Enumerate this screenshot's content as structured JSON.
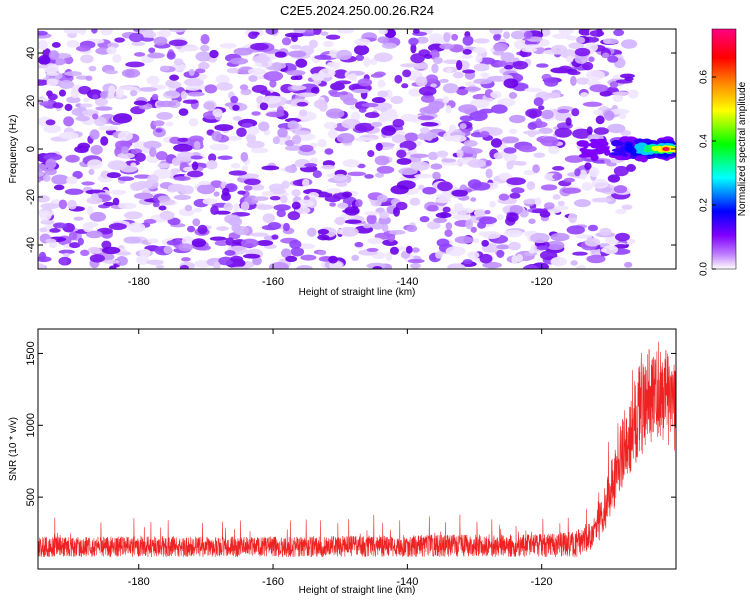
{
  "figure_title": "C2E5.2024.250.00.26.R24",
  "chart_data": [
    {
      "type": "heatmap",
      "title": "",
      "xlabel": "Height of straight line (km)",
      "ylabel": "Frequency (Hz)",
      "xlim": [
        -195,
        -100
      ],
      "ylim": [
        -50,
        50
      ],
      "xticks": [
        -180,
        -160,
        -140,
        -120
      ],
      "yticks": [
        -40,
        -20,
        0,
        20,
        40
      ],
      "grid": false,
      "data_extent_x": [
        -195,
        -107
      ],
      "background_noise": {
        "level_range": [
          0.0,
          0.2
        ],
        "appearance": "scattered speckle across the band"
      },
      "signal_feature": {
        "x_range": [
          -114,
          -100
        ],
        "frequency_center_hz": 0,
        "frequency_halfwidth_hz": 4,
        "peak_level": 0.75,
        "peak_x": -101.5
      },
      "colorbar": {
        "label": "Normalized spectral amplitude",
        "range": [
          0.0,
          0.75
        ],
        "ticks": [
          0.0,
          0.2,
          0.4,
          0.6
        ],
        "colormap": [
          "#ffffff",
          "#8000ff",
          "#0000ff",
          "#00ffff",
          "#00ff00",
          "#ffff00",
          "#ff8000",
          "#ff0000",
          "#ff0080"
        ],
        "position": "right"
      }
    },
    {
      "type": "line",
      "title": "",
      "xlabel": "Height of straight line (km)",
      "ylabel": "SNR (10 * v/v)",
      "xlim": [
        -195,
        -100
      ],
      "ylim": [
        0,
        1670
      ],
      "xticks": [
        -180,
        -160,
        -140,
        -120
      ],
      "yticks": [
        500,
        1000,
        1500
      ],
      "grid": false,
      "series": [
        {
          "color": "#ee2222",
          "profile": {
            "x": [
              -195,
              -180,
              -160,
              -140,
              -120,
              -115,
              -112,
              -110,
              -108,
              -106,
              -104,
              -102,
              -100
            ],
            "y": [
              155,
              155,
              155,
              160,
              165,
              170,
              250,
              500,
              800,
              1050,
              1200,
              1250,
              1100
            ],
            "noise_amplitude": [
              70,
              70,
              70,
              75,
              80,
              90,
              110,
              180,
              260,
              320,
              340,
              350,
              300
            ],
            "envelope_max": [
              380,
              360,
              350,
              400,
              360,
              380,
              450,
              900,
              1300,
              1600,
              1650,
              1650,
              1500
            ]
          }
        }
      ]
    }
  ]
}
